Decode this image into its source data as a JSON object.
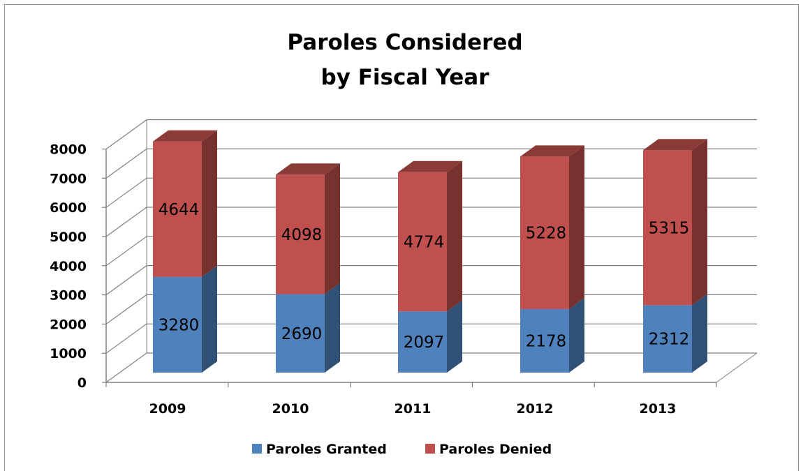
{
  "chart_data": {
    "type": "bar",
    "stacked": true,
    "three_d": true,
    "title_lines": [
      "Paroles Considered",
      "by Fiscal Year"
    ],
    "categories": [
      "2009",
      "2010",
      "2011",
      "2012",
      "2013"
    ],
    "series": [
      {
        "name": "Paroles Granted",
        "color": "#4f81bd",
        "values": [
          3280,
          2690,
          2097,
          2178,
          2312
        ]
      },
      {
        "name": "Paroles Denied",
        "color": "#c0504d",
        "values": [
          4644,
          4098,
          4774,
          5228,
          5315
        ]
      }
    ],
    "y_ticks": [
      "0",
      "1000",
      "2000",
      "3000",
      "4000",
      "5000",
      "6000",
      "7000",
      "8000"
    ],
    "ylim": [
      0,
      8000
    ],
    "grid": true,
    "legend_position": "bottom"
  }
}
